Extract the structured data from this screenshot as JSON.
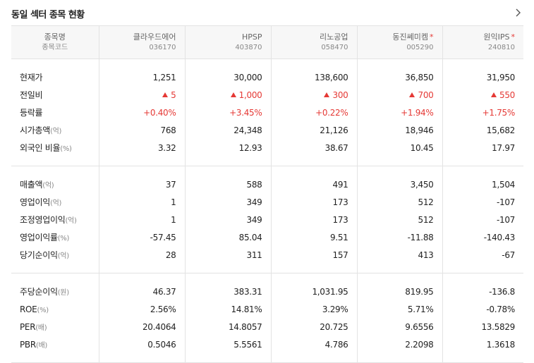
{
  "title": "동일 섹터 종목 현황",
  "header": {
    "label_name": "종목명",
    "label_code": "종목코드",
    "stocks": [
      {
        "name": "클라우드에어",
        "code": "036170",
        "star": false
      },
      {
        "name": "HPSP",
        "code": "403870",
        "star": false
      },
      {
        "name": "리노공업",
        "code": "058470",
        "star": false
      },
      {
        "name": "동진쎄미켐",
        "code": "005290",
        "star": true
      },
      {
        "name": "원익IPS",
        "code": "240810",
        "star": true
      }
    ],
    "star_symbol": "*"
  },
  "sections": [
    {
      "rows": [
        {
          "label": "현재가",
          "unit": "",
          "values": [
            "1,251",
            "30,000",
            "138,600",
            "36,850",
            "31,950"
          ],
          "style": "plain"
        },
        {
          "label": "전일비",
          "unit": "",
          "values": [
            "5",
            "1,000",
            "300",
            "700",
            "550"
          ],
          "style": "up-arrow"
        },
        {
          "label": "등락률",
          "unit": "",
          "values": [
            "+0.40%",
            "+3.45%",
            "+0.22%",
            "+1.94%",
            "+1.75%"
          ],
          "style": "up"
        },
        {
          "label": "시가총액",
          "unit": "(억)",
          "values": [
            "768",
            "24,348",
            "21,126",
            "18,946",
            "15,682"
          ],
          "style": "plain"
        },
        {
          "label": "외국인 비율",
          "unit": "(%)",
          "values": [
            "3.32",
            "12.93",
            "38.67",
            "10.45",
            "17.97"
          ],
          "style": "plain"
        }
      ]
    },
    {
      "rows": [
        {
          "label": "매출액",
          "unit": "(억)",
          "values": [
            "37",
            "588",
            "491",
            "3,450",
            "1,504"
          ],
          "style": "plain"
        },
        {
          "label": "영업이익",
          "unit": "(억)",
          "values": [
            "1",
            "349",
            "173",
            "512",
            "-107"
          ],
          "style": "plain"
        },
        {
          "label": "조정영업이익",
          "unit": "(억)",
          "values": [
            "1",
            "349",
            "173",
            "512",
            "-107"
          ],
          "style": "plain"
        },
        {
          "label": "영업이익률",
          "unit": "(%)",
          "values": [
            "-57.45",
            "85.04",
            "9.51",
            "-11.88",
            "-140.43"
          ],
          "style": "plain"
        },
        {
          "label": "당기순이익",
          "unit": "(억)",
          "values": [
            "28",
            "311",
            "157",
            "413",
            "-67"
          ],
          "style": "plain"
        }
      ]
    },
    {
      "rows": [
        {
          "label": "주당순이익",
          "unit": "(원)",
          "values": [
            "46.37",
            "383.31",
            "1,031.95",
            "819.95",
            "-136.8"
          ],
          "style": "plain"
        },
        {
          "label": "ROE",
          "unit": "(%)",
          "values": [
            "2.56%",
            "14.81%",
            "3.29%",
            "5.71%",
            "-0.78%"
          ],
          "style": "plain"
        },
        {
          "label": "PER",
          "unit": "(배)",
          "values": [
            "20.4064",
            "14.8057",
            "20.725",
            "9.6556",
            "13.5829"
          ],
          "style": "plain"
        },
        {
          "label": "PBR",
          "unit": "(배)",
          "values": [
            "0.5046",
            "5.5561",
            "4.786",
            "2.2098",
            "1.3618"
          ],
          "style": "plain"
        }
      ]
    }
  ],
  "colors": {
    "up": "#e53935",
    "header_bg": "#f7f7f7",
    "border": "#e3e3e3"
  },
  "icons": {
    "more": "chevron-right-icon",
    "up": "triangle-up-icon"
  }
}
